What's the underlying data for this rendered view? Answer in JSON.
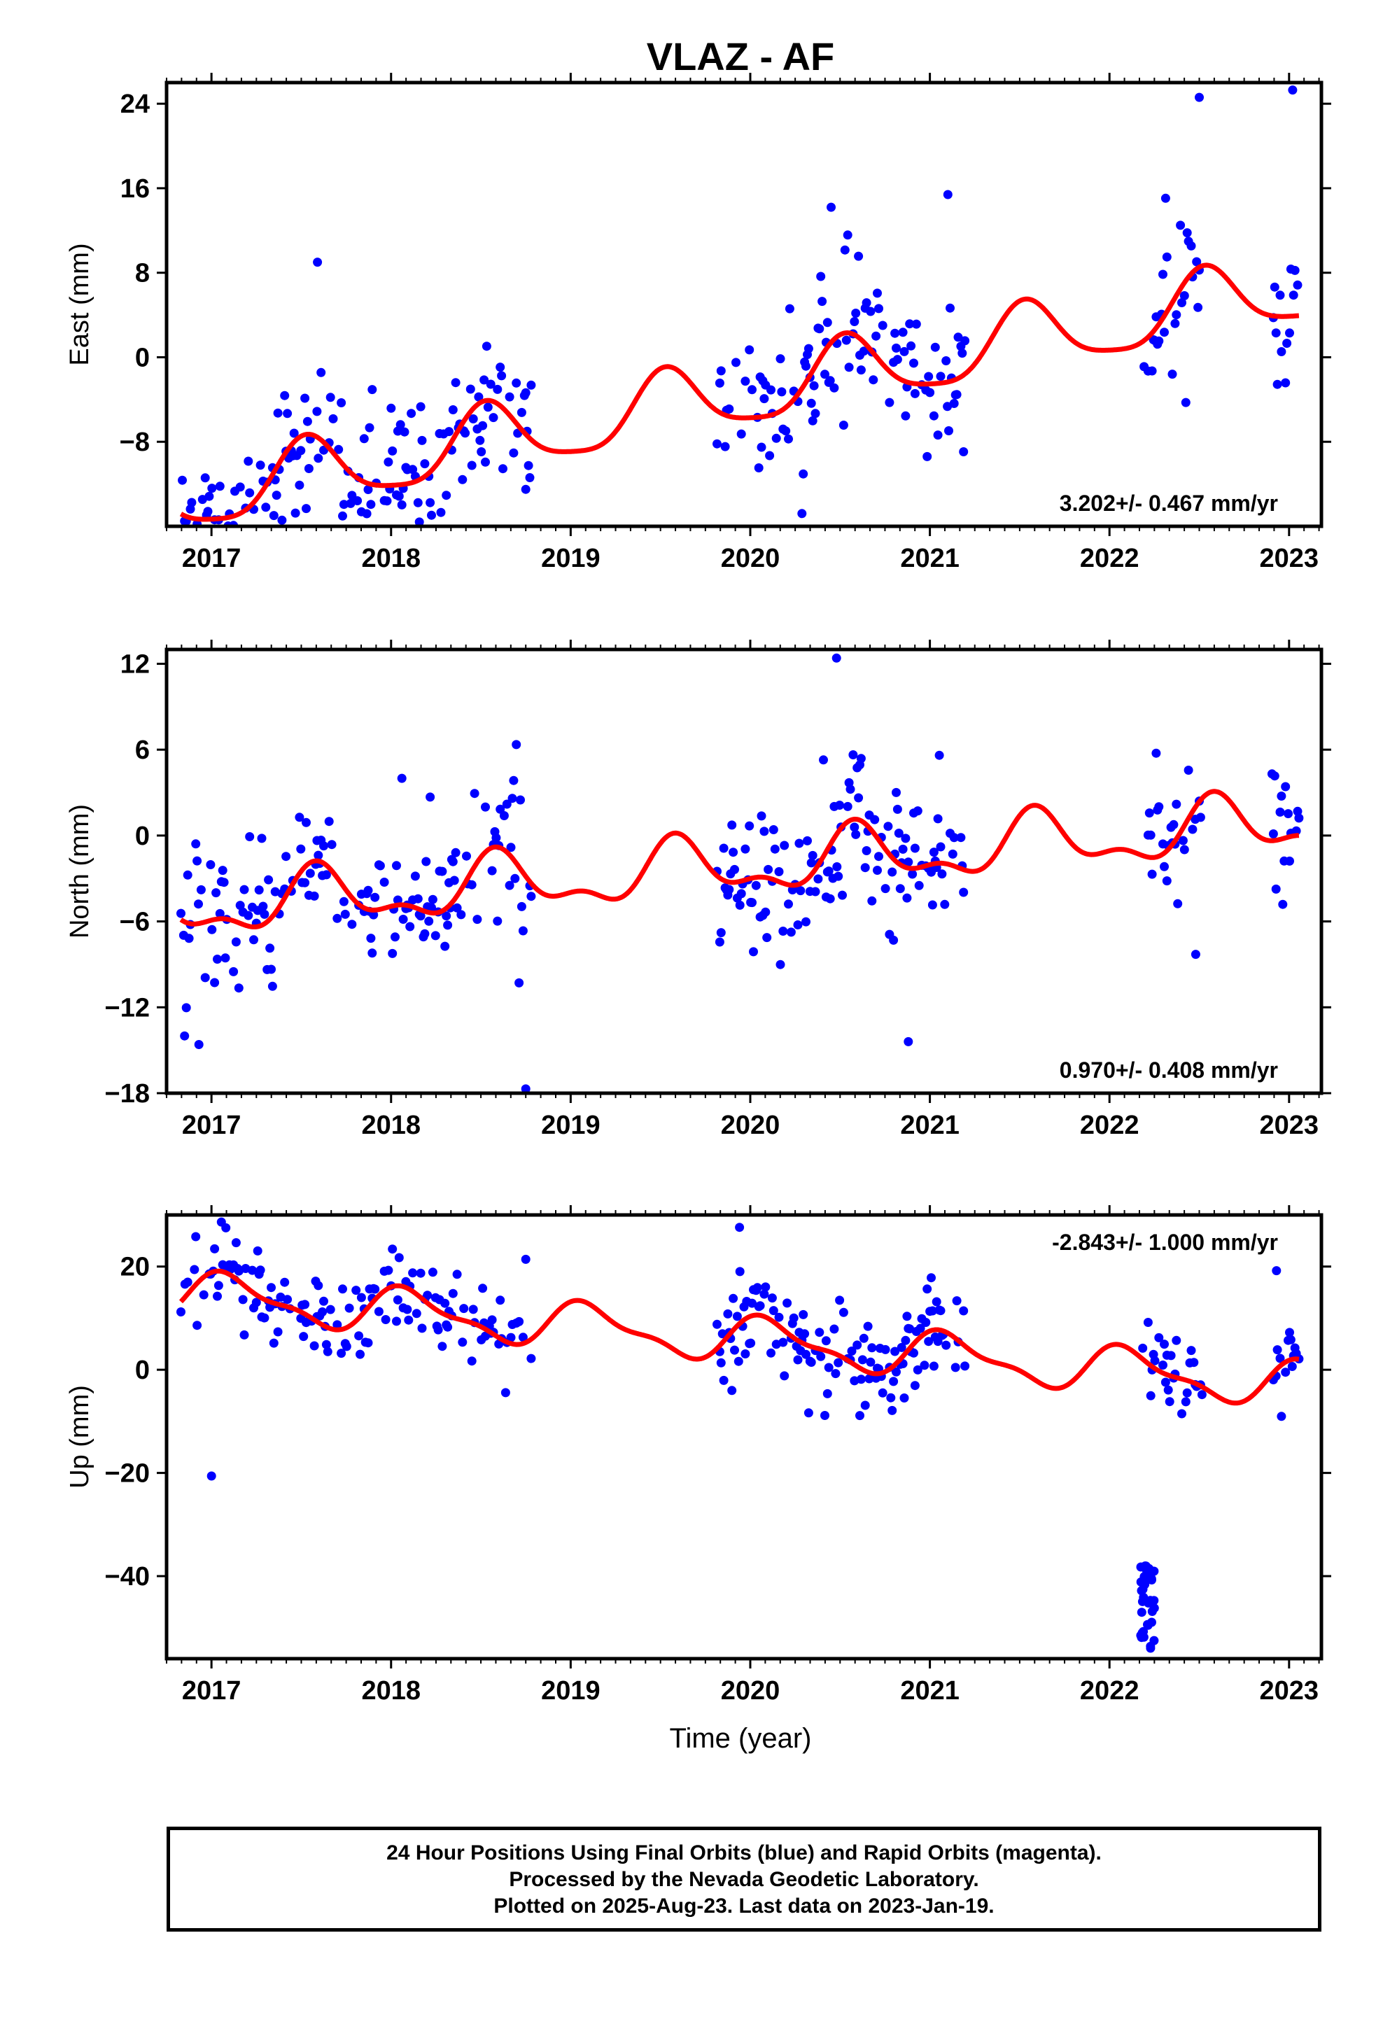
{
  "colors": {
    "data": "#0000ff",
    "model": "#ff0000",
    "frame": "#000000"
  },
  "chart_data": {
    "type": "scatter",
    "title": "VLAZ - AF",
    "xlabel": "Time (year)",
    "x_range": [
      2016.75,
      2023.18
    ],
    "x_ticks": [
      "2017",
      "2018",
      "2019",
      "2020",
      "2021",
      "2022",
      "2023"
    ],
    "data_gaps": [
      [
        2018.78,
        2019.8
      ],
      [
        2021.2,
        2022.18
      ],
      [
        2022.52,
        2022.9
      ]
    ],
    "marker_color": "blue",
    "model_color": "red",
    "panels": [
      {
        "ylabel": "East (mm)",
        "ylim": [
          -16,
          26
        ],
        "y_ticks": [
          24,
          16,
          8,
          0,
          -8
        ],
        "rate": "3.202+/- 0.467 mm/yr",
        "rate_position": "bottom-right",
        "model": {
          "trend": 3.2,
          "offset": -3.6,
          "annual": 3.2,
          "semiannual": 0.7,
          "phase": 4.5
        },
        "scatter": 3.4,
        "extremes": [
          [
            2016.85,
            -15.5
          ],
          [
            2017.59,
            9.0
          ],
          [
            2018.75,
            -12.5
          ],
          [
            2020.45,
            14.2
          ],
          [
            2021.1,
            15.4
          ],
          [
            2022.5,
            24.6
          ],
          [
            2023.02,
            25.3
          ]
        ]
      },
      {
        "ylabel": "North (mm)",
        "ylim": [
          -18,
          13
        ],
        "y_ticks": [
          12,
          6,
          0,
          -6,
          -12,
          -18
        ],
        "rate": "0.970+/- 0.408 mm/yr",
        "rate_position": "bottom-right",
        "model": {
          "trend": 0.97,
          "offset": -2.2,
          "annual": 1.8,
          "semiannual": 0.9,
          "phase": 4.1
        },
        "scatter": 2.7,
        "extremes": [
          [
            2016.85,
            -14.0
          ],
          [
            2016.93,
            -14.6
          ],
          [
            2018.75,
            -17.7
          ],
          [
            2020.48,
            12.4
          ],
          [
            2020.88,
            -14.4
          ],
          [
            2022.48,
            -8.3
          ]
        ]
      },
      {
        "ylabel": "Up (mm)",
        "ylim": [
          -56,
          30
        ],
        "y_ticks": [
          20,
          0,
          -20,
          -40
        ],
        "rate": "-2.843+/- 1.000 mm/yr",
        "rate_position": "top-right",
        "model": {
          "trend": -2.84,
          "offset": 6.0,
          "annual": 4.0,
          "semiannual": 1.5,
          "phase": 0.9
        },
        "scatter": 4.6,
        "outlier_cluster": {
          "x": [
            2022.17,
            2022.25
          ],
          "y": [
            -54,
            -38
          ]
        },
        "extremes": [
          [
            2017.08,
            27.5
          ],
          [
            2019.94,
            27.6
          ],
          [
            2017.0,
            -20.6
          ],
          [
            2018.75,
            21.4
          ],
          [
            2022.93,
            19.2
          ]
        ]
      }
    ]
  },
  "caption": {
    "line1": "24 Hour Positions Using Final Orbits (blue) and Rapid Orbits (magenta).",
    "line2": "Processed by the Nevada Geodetic Laboratory.",
    "line3": "Plotted on 2025-Aug-23. Last data on 2023-Jan-19."
  }
}
